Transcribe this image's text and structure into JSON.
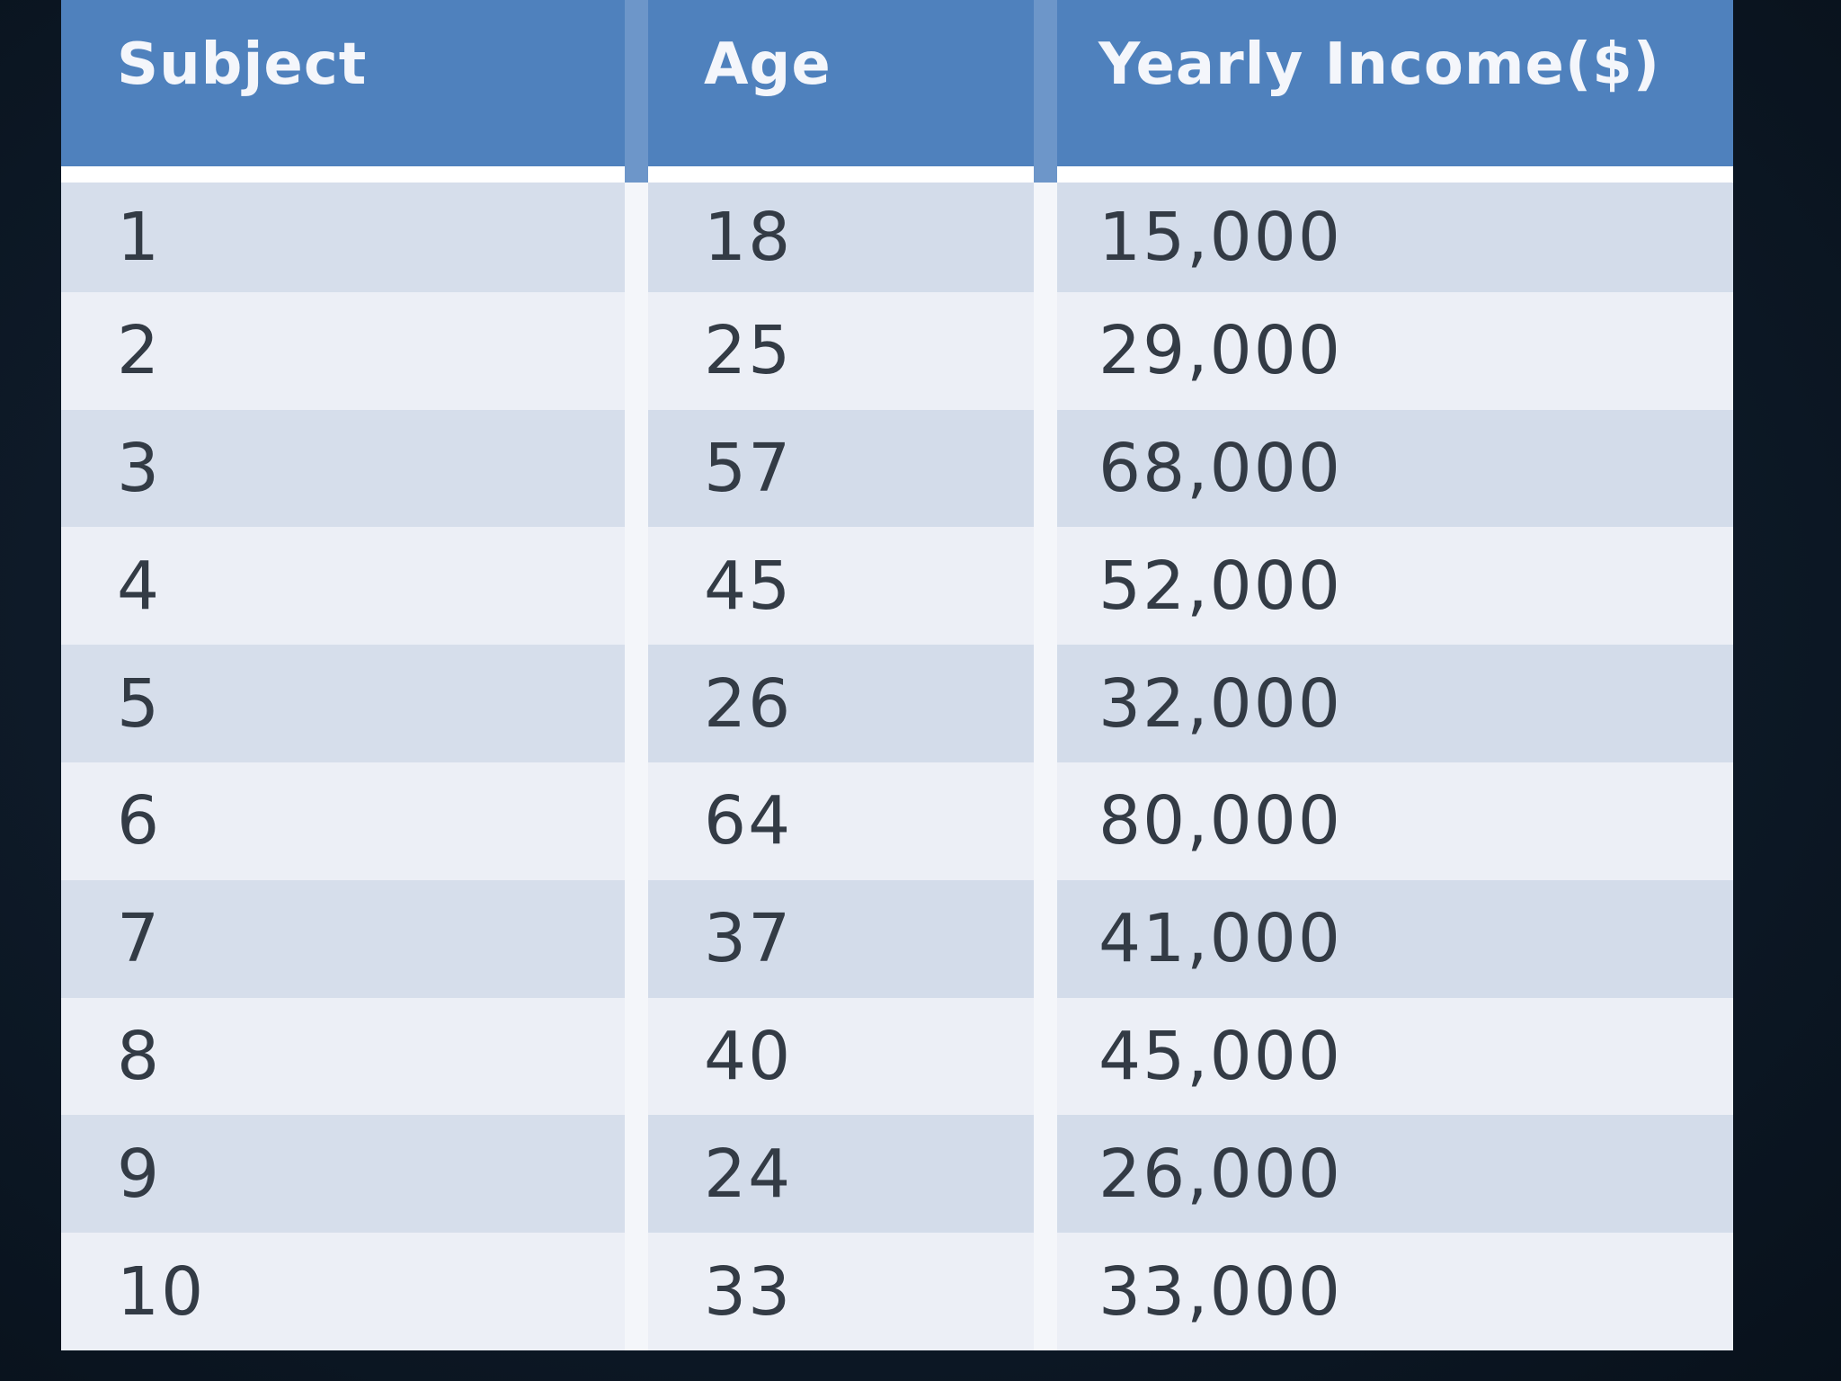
{
  "table": {
    "headers": [
      "Subject",
      "Age",
      "Yearly Income($)"
    ],
    "rows": [
      [
        "1",
        "18",
        "15,000"
      ],
      [
        "2",
        "25",
        "29,000"
      ],
      [
        "3",
        "57",
        "68,000"
      ],
      [
        "4",
        "45",
        "52,000"
      ],
      [
        "5",
        "26",
        "32,000"
      ],
      [
        "6",
        "64",
        "80,000"
      ],
      [
        "7",
        "37",
        "41,000"
      ],
      [
        "8",
        "40",
        "45,000"
      ],
      [
        "9",
        "24",
        "26,000"
      ],
      [
        "10",
        "33",
        "33,000"
      ]
    ]
  },
  "colors": {
    "header_bg": "#4f81bd",
    "row_band": "#d3dcea",
    "row_plain": "#eceff6",
    "page_bg": "#0e1a28"
  }
}
